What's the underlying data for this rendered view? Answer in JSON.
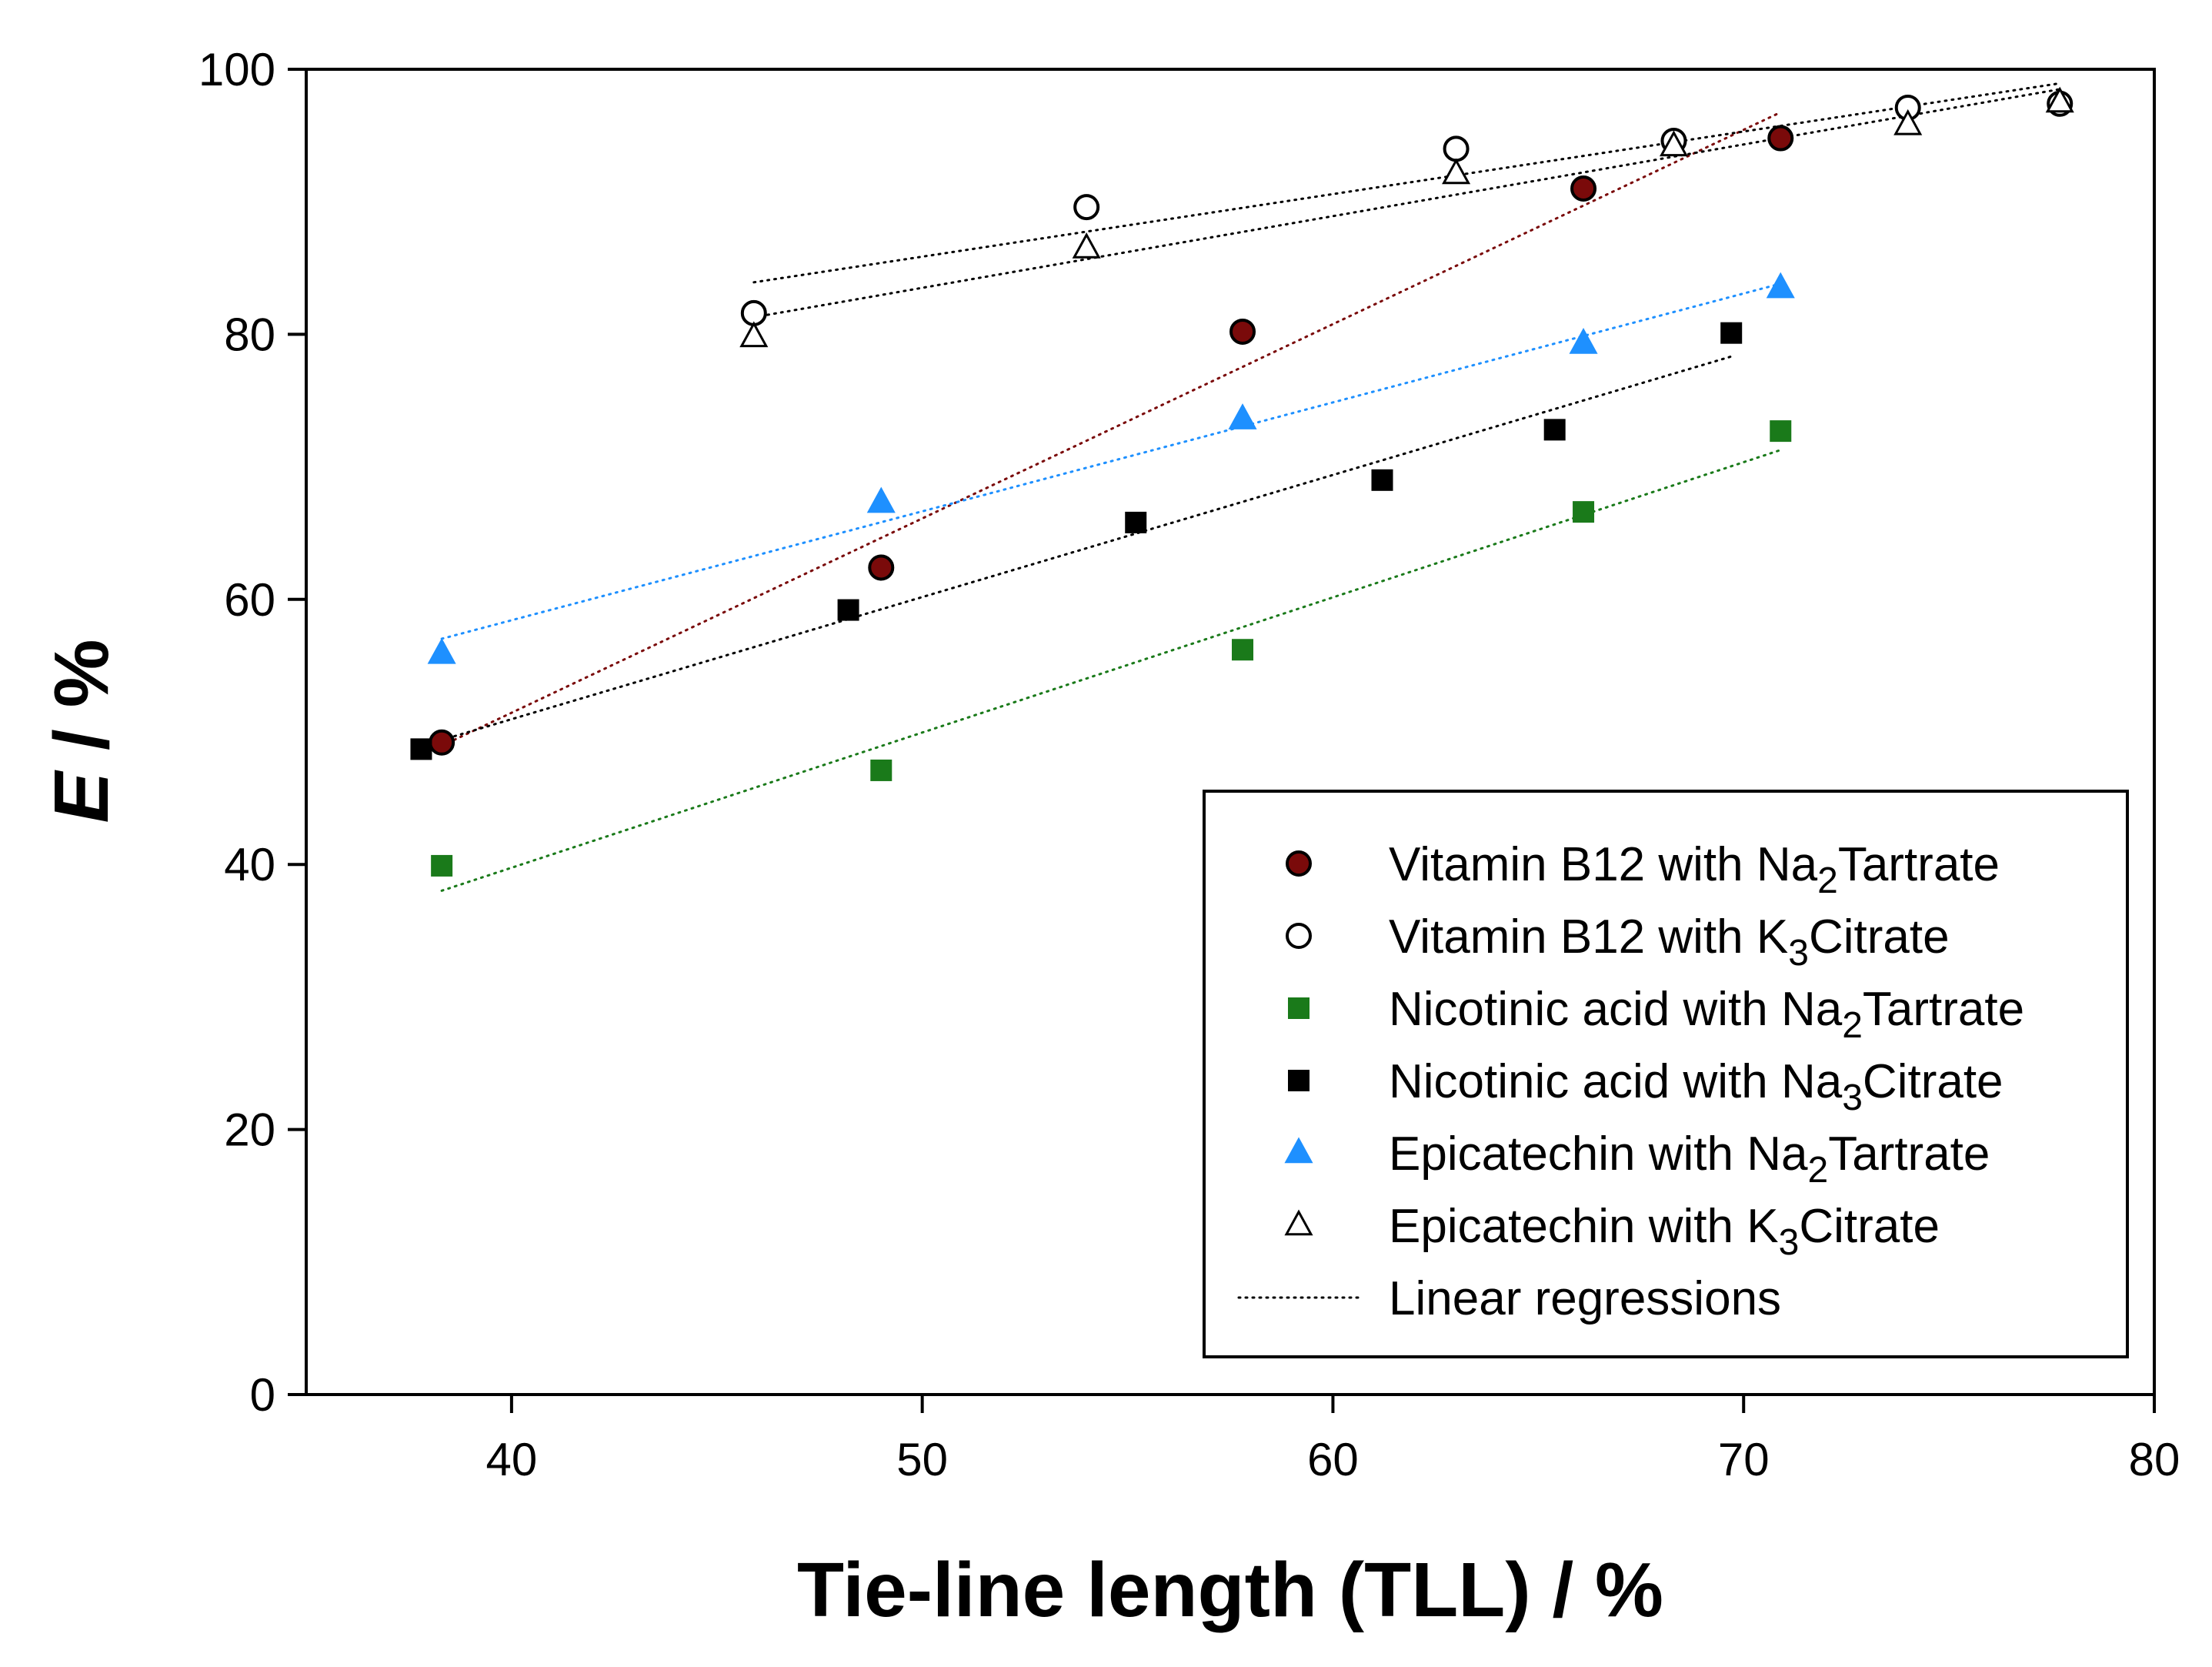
{
  "chart_data": {
    "type": "scatter",
    "title": "",
    "xlabel": "Tie-line length (TLL) / %",
    "ylabel_italic": "E",
    "ylabel_rest": " / %",
    "xlim": [
      35,
      80
    ],
    "ylim": [
      0,
      100
    ],
    "xticks": [
      "40",
      "50",
      "60",
      "70",
      "80"
    ],
    "yticks": [
      "0",
      "20",
      "40",
      "60",
      "80",
      "100"
    ],
    "grid": false,
    "legend_position": "bottom-right",
    "series": [
      {
        "name_prefix": "Vitamin B12 with Na",
        "name_sub": "2",
        "name_suffix": "Tartrate",
        "marker": "circle",
        "fill": "#7a0a0a",
        "stroke": "#000000",
        "line_color": "#7a0a0a",
        "x": [
          38.3,
          49.0,
          57.8,
          66.1,
          70.9
        ],
        "y": [
          49.2,
          62.4,
          80.2,
          91.0,
          94.8
        ],
        "fit_x": [
          38.3,
          70.9
        ]
      },
      {
        "name_prefix": "Vitamin B12 with K",
        "name_sub": "3",
        "name_suffix": "Citrate",
        "marker": "circle",
        "fill": "#ffffff",
        "stroke": "#000000",
        "line_color": "#000000",
        "x": [
          45.9,
          54.0,
          63.0,
          68.3,
          74.0,
          77.7
        ],
        "y": [
          81.6,
          89.6,
          94.0,
          94.6,
          97.1,
          97.4
        ],
        "fit_x": [
          45.9,
          77.7
        ]
      },
      {
        "name_prefix": "Nicotinic acid with Na",
        "name_sub": "2",
        "name_suffix": "Tartrate",
        "marker": "square",
        "fill": "#1a7a1a",
        "stroke": "#1a7a1a",
        "line_color": "#1a7a1a",
        "x": [
          38.3,
          49.0,
          57.8,
          66.1,
          70.9
        ],
        "y": [
          39.9,
          47.1,
          56.2,
          66.6,
          72.7
        ],
        "fit_x": [
          38.3,
          70.9
        ]
      },
      {
        "name_prefix": "Nicotinic acid with Na",
        "name_sub": "3",
        "name_suffix": "Citrate",
        "marker": "square",
        "fill": "#000000",
        "stroke": "#000000",
        "line_color": "#000000",
        "x": [
          37.8,
          48.2,
          55.2,
          61.2,
          65.4,
          69.7
        ],
        "y": [
          48.7,
          59.2,
          65.8,
          69.0,
          72.8,
          80.1
        ],
        "fit_x": [
          37.8,
          69.7
        ]
      },
      {
        "name_prefix": "Epicatechin with Na",
        "name_sub": "2",
        "name_suffix": "Tartrate",
        "marker": "triangle",
        "fill": "#1e90ff",
        "stroke": "#1e90ff",
        "line_color": "#1e90ff",
        "x": [
          38.3,
          49.0,
          57.8,
          66.1,
          70.9
        ],
        "y": [
          55.9,
          67.3,
          73.6,
          79.3,
          83.5
        ],
        "fit_x": [
          38.3,
          70.9
        ]
      },
      {
        "name_prefix": "Epicatechin with K",
        "name_sub": "3",
        "name_suffix": "Citrate",
        "marker": "triangle",
        "fill": "#ffffff",
        "stroke": "#000000",
        "line_color": "#000000",
        "x": [
          45.9,
          54.0,
          63.0,
          68.3,
          74.0,
          77.7
        ],
        "y": [
          79.8,
          86.5,
          92.1,
          94.2,
          95.8,
          97.5
        ],
        "fit_x": [
          45.9,
          77.7
        ]
      }
    ],
    "legend_regression_label": "Linear regressions"
  }
}
